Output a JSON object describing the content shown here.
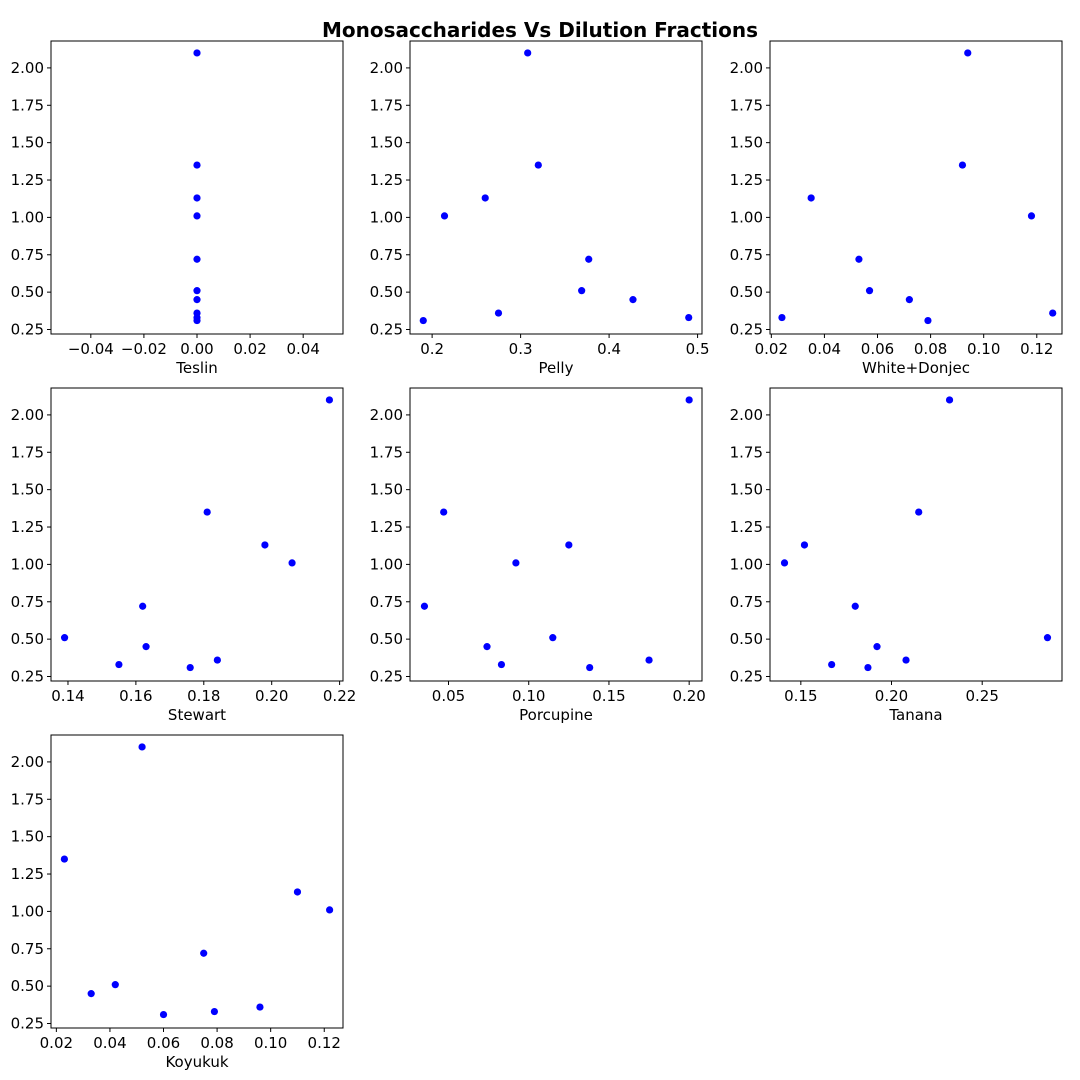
{
  "figure": {
    "title": "Monosaccharides Vs Dilution Fractions",
    "marker_color": "#0000ff"
  },
  "chart_data": [
    {
      "type": "scatter",
      "xlabel": "Teslin",
      "xlim": [
        -0.055,
        0.055
      ],
      "ylim": [
        0.22,
        2.18
      ],
      "xticks": [
        -0.04,
        -0.02,
        0.0,
        0.02,
        0.04
      ],
      "xtick_labels": [
        "−0.04",
        "−0.02",
        "0.00",
        "0.02",
        "0.04"
      ],
      "yticks": [
        0.25,
        0.5,
        0.75,
        1.0,
        1.25,
        1.5,
        1.75,
        2.0
      ],
      "ytick_labels": [
        "0.25",
        "0.50",
        "0.75",
        "1.00",
        "1.25",
        "1.50",
        "1.75",
        "2.00"
      ],
      "points": [
        {
          "x": 0.0,
          "y": 2.1
        },
        {
          "x": 0.0,
          "y": 1.35
        },
        {
          "x": 0.0,
          "y": 1.13
        },
        {
          "x": 0.0,
          "y": 1.01
        },
        {
          "x": 0.0,
          "y": 0.72
        },
        {
          "x": 0.0,
          "y": 0.51
        },
        {
          "x": 0.0,
          "y": 0.45
        },
        {
          "x": 0.0,
          "y": 0.36
        },
        {
          "x": 0.0,
          "y": 0.33
        },
        {
          "x": 0.0,
          "y": 0.31
        }
      ]
    },
    {
      "type": "scatter",
      "xlabel": "Pelly",
      "xlim": [
        0.175,
        0.505
      ],
      "ylim": [
        0.22,
        2.18
      ],
      "xticks": [
        0.2,
        0.3,
        0.4,
        0.5
      ],
      "xtick_labels": [
        "0.2",
        "0.3",
        "0.4",
        "0.5"
      ],
      "yticks": [
        0.25,
        0.5,
        0.75,
        1.0,
        1.25,
        1.5,
        1.75,
        2.0
      ],
      "ytick_labels": [
        "0.25",
        "0.50",
        "0.75",
        "1.00",
        "1.25",
        "1.50",
        "1.75",
        "2.00"
      ],
      "points": [
        {
          "x": 0.308,
          "y": 2.1
        },
        {
          "x": 0.32,
          "y": 1.35
        },
        {
          "x": 0.26,
          "y": 1.13
        },
        {
          "x": 0.214,
          "y": 1.01
        },
        {
          "x": 0.377,
          "y": 0.72
        },
        {
          "x": 0.369,
          "y": 0.51
        },
        {
          "x": 0.427,
          "y": 0.45
        },
        {
          "x": 0.275,
          "y": 0.36
        },
        {
          "x": 0.49,
          "y": 0.33
        },
        {
          "x": 0.19,
          "y": 0.31
        }
      ]
    },
    {
      "type": "scatter",
      "xlabel": "White+Donjec",
      "xlim": [
        0.0195,
        0.1295
      ],
      "ylim": [
        0.22,
        2.18
      ],
      "xticks": [
        0.02,
        0.04,
        0.06,
        0.08,
        0.1,
        0.12
      ],
      "xtick_labels": [
        "0.02",
        "0.04",
        "0.06",
        "0.08",
        "0.10",
        "0.12"
      ],
      "yticks": [
        0.25,
        0.5,
        0.75,
        1.0,
        1.25,
        1.5,
        1.75,
        2.0
      ],
      "ytick_labels": [
        "0.25",
        "0.50",
        "0.75",
        "1.00",
        "1.25",
        "1.50",
        "1.75",
        "2.00"
      ],
      "points": [
        {
          "x": 0.094,
          "y": 2.1
        },
        {
          "x": 0.092,
          "y": 1.35
        },
        {
          "x": 0.035,
          "y": 1.13
        },
        {
          "x": 0.118,
          "y": 1.01
        },
        {
          "x": 0.053,
          "y": 0.72
        },
        {
          "x": 0.057,
          "y": 0.51
        },
        {
          "x": 0.072,
          "y": 0.45
        },
        {
          "x": 0.126,
          "y": 0.36
        },
        {
          "x": 0.024,
          "y": 0.33
        },
        {
          "x": 0.079,
          "y": 0.31
        }
      ]
    },
    {
      "type": "scatter",
      "xlabel": "Stewart",
      "xlim": [
        0.135,
        0.221
      ],
      "ylim": [
        0.22,
        2.18
      ],
      "xticks": [
        0.14,
        0.16,
        0.18,
        0.2,
        0.22
      ],
      "xtick_labels": [
        "0.14",
        "0.16",
        "0.18",
        "0.20",
        "0.22"
      ],
      "yticks": [
        0.25,
        0.5,
        0.75,
        1.0,
        1.25,
        1.5,
        1.75,
        2.0
      ],
      "ytick_labels": [
        "0.25",
        "0.50",
        "0.75",
        "1.00",
        "1.25",
        "1.50",
        "1.75",
        "2.00"
      ],
      "points": [
        {
          "x": 0.217,
          "y": 2.1
        },
        {
          "x": 0.181,
          "y": 1.35
        },
        {
          "x": 0.198,
          "y": 1.13
        },
        {
          "x": 0.206,
          "y": 1.01
        },
        {
          "x": 0.162,
          "y": 0.72
        },
        {
          "x": 0.139,
          "y": 0.51
        },
        {
          "x": 0.163,
          "y": 0.45
        },
        {
          "x": 0.184,
          "y": 0.36
        },
        {
          "x": 0.155,
          "y": 0.33
        },
        {
          "x": 0.176,
          "y": 0.31
        }
      ]
    },
    {
      "type": "scatter",
      "xlabel": "Porcupine",
      "xlim": [
        0.026,
        0.208
      ],
      "ylim": [
        0.22,
        2.18
      ],
      "xticks": [
        0.05,
        0.1,
        0.15,
        0.2
      ],
      "xtick_labels": [
        "0.05",
        "0.10",
        "0.15",
        "0.20"
      ],
      "yticks": [
        0.25,
        0.5,
        0.75,
        1.0,
        1.25,
        1.5,
        1.75,
        2.0
      ],
      "ytick_labels": [
        "0.25",
        "0.50",
        "0.75",
        "1.00",
        "1.25",
        "1.50",
        "1.75",
        "2.00"
      ],
      "points": [
        {
          "x": 0.2,
          "y": 2.1
        },
        {
          "x": 0.047,
          "y": 1.35
        },
        {
          "x": 0.125,
          "y": 1.13
        },
        {
          "x": 0.092,
          "y": 1.01
        },
        {
          "x": 0.035,
          "y": 0.72
        },
        {
          "x": 0.115,
          "y": 0.51
        },
        {
          "x": 0.074,
          "y": 0.45
        },
        {
          "x": 0.175,
          "y": 0.36
        },
        {
          "x": 0.083,
          "y": 0.33
        },
        {
          "x": 0.138,
          "y": 0.31
        }
      ]
    },
    {
      "type": "scatter",
      "xlabel": "Tanana",
      "xlim": [
        0.133,
        0.294
      ],
      "ylim": [
        0.22,
        2.18
      ],
      "xticks": [
        0.15,
        0.2,
        0.25
      ],
      "xtick_labels": [
        "0.15",
        "0.20",
        "0.25"
      ],
      "yticks": [
        0.25,
        0.5,
        0.75,
        1.0,
        1.25,
        1.5,
        1.75,
        2.0
      ],
      "ytick_labels": [
        "0.25",
        "0.50",
        "0.75",
        "1.00",
        "1.25",
        "1.50",
        "1.75",
        "2.00"
      ],
      "points": [
        {
          "x": 0.232,
          "y": 2.1
        },
        {
          "x": 0.215,
          "y": 1.35
        },
        {
          "x": 0.152,
          "y": 1.13
        },
        {
          "x": 0.141,
          "y": 1.01
        },
        {
          "x": 0.18,
          "y": 0.72
        },
        {
          "x": 0.286,
          "y": 0.51
        },
        {
          "x": 0.192,
          "y": 0.45
        },
        {
          "x": 0.208,
          "y": 0.36
        },
        {
          "x": 0.167,
          "y": 0.33
        },
        {
          "x": 0.187,
          "y": 0.31
        }
      ]
    },
    {
      "type": "scatter",
      "xlabel": "Koyukuk",
      "xlim": [
        0.018,
        0.127
      ],
      "ylim": [
        0.22,
        2.18
      ],
      "xticks": [
        0.02,
        0.04,
        0.06,
        0.08,
        0.1,
        0.12
      ],
      "xtick_labels": [
        "0.02",
        "0.04",
        "0.06",
        "0.08",
        "0.10",
        "0.12"
      ],
      "yticks": [
        0.25,
        0.5,
        0.75,
        1.0,
        1.25,
        1.5,
        1.75,
        2.0
      ],
      "ytick_labels": [
        "0.25",
        "0.50",
        "0.75",
        "1.00",
        "1.25",
        "1.50",
        "1.75",
        "2.00"
      ],
      "points": [
        {
          "x": 0.052,
          "y": 2.1
        },
        {
          "x": 0.023,
          "y": 1.35
        },
        {
          "x": 0.11,
          "y": 1.13
        },
        {
          "x": 0.122,
          "y": 1.01
        },
        {
          "x": 0.075,
          "y": 0.72
        },
        {
          "x": 0.042,
          "y": 0.51
        },
        {
          "x": 0.033,
          "y": 0.45
        },
        {
          "x": 0.096,
          "y": 0.36
        },
        {
          "x": 0.079,
          "y": 0.33
        },
        {
          "x": 0.06,
          "y": 0.31
        }
      ]
    }
  ]
}
